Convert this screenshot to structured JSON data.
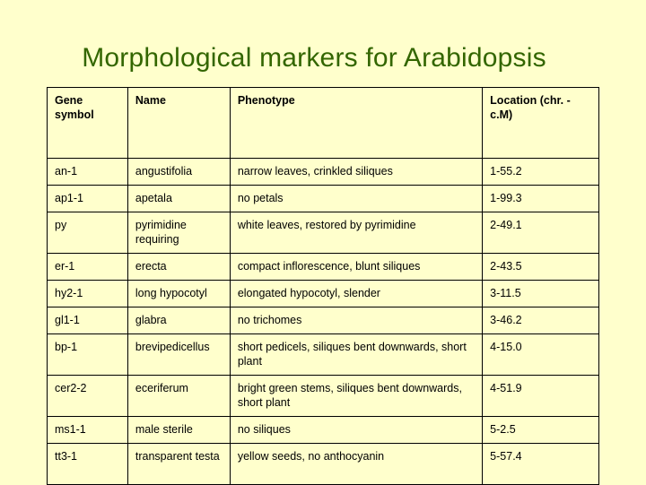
{
  "title": "Morphological markers for Arabidopsis",
  "table": {
    "headers": [
      "Gene symbol",
      "Name",
      "Phenotype",
      "Location (chr. - c.M)"
    ],
    "rows": [
      [
        "an-1",
        "angustifolia",
        "narrow leaves, crinkled siliques",
        "1-55.2"
      ],
      [
        "ap1-1",
        "apetala",
        "no petals",
        "1-99.3"
      ],
      [
        "py",
        "pyrimidine requiring",
        "white leaves, restored by pyrimidine",
        "2-49.1"
      ],
      [
        "er-1",
        "erecta",
        "compact inflorescence, blunt siliques",
        "2-43.5"
      ],
      [
        "hy2-1",
        "long hypocotyl",
        "elongated hypocotyl, slender",
        "3-11.5"
      ],
      [
        "gl1-1",
        "glabra",
        "no trichomes",
        "3-46.2"
      ],
      [
        "bp-1",
        "brevipedicellus",
        "short pedicels, siliques bent downwards, short plant",
        "4-15.0"
      ],
      [
        "cer2-2",
        "eceriferum",
        "bright green stems, siliques bent downwards, short plant",
        "4-51.9"
      ],
      [
        "ms1-1",
        "male sterile",
        "no siliques",
        "5-2.5"
      ],
      [
        "tt3-1",
        "transparent testa",
        "yellow seeds, no anthocyanin",
        "5-57.4"
      ]
    ]
  }
}
